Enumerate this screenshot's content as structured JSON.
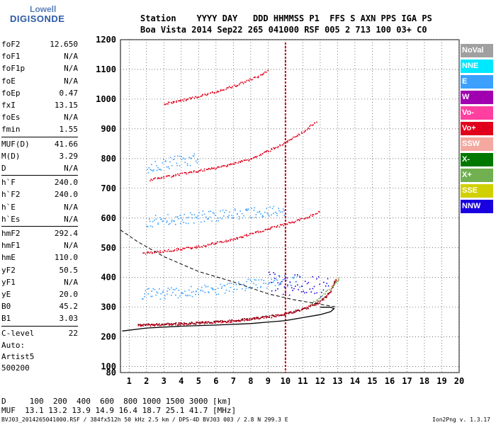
{
  "logo": {
    "line1": "Lowell",
    "line2": "DIGISONDE"
  },
  "header": {
    "line1": "Station    YYYY DAY   DDD HHMMSS P1  FFS S AXN PPS IGA PS",
    "line2": "Boa Vista 2014 Sep22 265 041000 RSF 005 2 713 100 03+ C0"
  },
  "params": [
    {
      "name": "foF2",
      "value": "12.650"
    },
    {
      "name": "foF1",
      "value": "N/A"
    },
    {
      "name": "foF1p",
      "value": "N/A"
    },
    {
      "name": "foE",
      "value": "N/A"
    },
    {
      "name": "foEp",
      "value": "0.47"
    },
    {
      "name": "fxI",
      "value": "13.15"
    },
    {
      "name": "foEs",
      "value": "N/A"
    },
    {
      "name": "fmin",
      "value": "1.55"
    },
    {
      "name": "MUF(D)",
      "value": "41.66"
    },
    {
      "name": "M(D)",
      "value": "3.29"
    },
    {
      "name": "D",
      "value": "N/A"
    },
    {
      "name": "h`F",
      "value": "240.0"
    },
    {
      "name": "h`F2",
      "value": "240.0"
    },
    {
      "name": "h`E",
      "value": "N/A"
    },
    {
      "name": "h`Es",
      "value": "N/A"
    },
    {
      "name": "hmF2",
      "value": "292.4"
    },
    {
      "name": "hmF1",
      "value": "N/A"
    },
    {
      "name": "hmE",
      "value": "110.0"
    },
    {
      "name": "yF2",
      "value": "50.5"
    },
    {
      "name": "yF1",
      "value": "N/A"
    },
    {
      "name": "yE",
      "value": "20.0"
    },
    {
      "name": "B0",
      "value": "45.2"
    },
    {
      "name": "B1",
      "value": "3.03"
    },
    {
      "name": "C-level",
      "value": "22"
    }
  ],
  "auto": {
    "line1": "Auto:",
    "line2": "Artist5",
    "line3": "500200"
  },
  "legend": [
    {
      "label": "NoVal",
      "bg": "#a0a0a0",
      "fg": "#ffffff"
    },
    {
      "label": "NNE",
      "bg": "#00e8ff",
      "fg": "#ffffff"
    },
    {
      "label": "E",
      "bg": "#3ca0ff",
      "fg": "#ffffff"
    },
    {
      "label": "W",
      "bg": "#a000b0",
      "fg": "#ffffff"
    },
    {
      "label": "Vo-",
      "bg": "#ff40a0",
      "fg": "#ffffff"
    },
    {
      "label": "Vo+",
      "bg": "#e0001c",
      "fg": "#ffffff"
    },
    {
      "label": "SSW",
      "bg": "#f4a8a0",
      "fg": "#ffffff"
    },
    {
      "label": "X-",
      "bg": "#007800",
      "fg": "#ffffff"
    },
    {
      "label": "X+",
      "bg": "#70b050",
      "fg": "#ffffff"
    },
    {
      "label": "SSE",
      "bg": "#d0d000",
      "fg": "#ffffff"
    },
    {
      "label": "NNW",
      "bg": "#1800e0",
      "fg": "#ffffff"
    }
  ],
  "muf_table": {
    "line1": "D     100  200  400  600  800 1000 1500 3000 [km]",
    "line2": "MUF  13.1 13.2 13.9 14.9 16.4 18.7 25.1 41.7 [MHz]"
  },
  "footer": {
    "file": "BVJ03_2014265041000.RSF / 384fx512h 50 kHz 2.5 km / DPS-4D BVJ03 003 / 2.8 N 299.3 E",
    "version": "Ion2Png v. 1.3.17"
  },
  "chart_data": {
    "type": "scatter",
    "xlim": [
      0.5,
      20
    ],
    "ylim": [
      80,
      1200
    ],
    "x_ticks": [
      1,
      2,
      3,
      4,
      5,
      6,
      7,
      8,
      9,
      10,
      11,
      12,
      13,
      14,
      15,
      16,
      17,
      18,
      19,
      20
    ],
    "y_ticks": [
      80,
      100,
      200,
      300,
      400,
      500,
      600,
      700,
      800,
      900,
      1000,
      1100,
      1200
    ],
    "series": [
      {
        "color": "#e0001c",
        "points": [
          [
            1.5,
            240
          ],
          [
            3,
            243
          ],
          [
            5,
            248
          ],
          [
            7,
            255
          ],
          [
            9,
            268
          ],
          [
            10,
            280
          ],
          [
            11,
            295
          ],
          [
            12,
            320
          ],
          [
            12.5,
            345
          ],
          [
            12.8,
            380
          ],
          [
            12.9,
            400
          ]
        ]
      },
      {
        "color": "#7a0010",
        "points": [
          [
            1.5,
            242
          ],
          [
            4,
            246
          ],
          [
            6,
            252
          ],
          [
            8,
            262
          ],
          [
            9.5,
            274
          ],
          [
            10.5,
            286
          ],
          [
            11.5,
            305
          ],
          [
            12.3,
            335
          ],
          [
            12.7,
            370
          ],
          [
            12.85,
            395
          ]
        ]
      },
      {
        "color": "#e0001c",
        "points": [
          [
            1.8,
            483
          ],
          [
            3,
            490
          ],
          [
            5,
            505
          ],
          [
            7,
            530
          ],
          [
            9,
            565
          ],
          [
            10.5,
            590
          ],
          [
            11.5,
            610
          ],
          [
            12,
            625
          ]
        ]
      },
      {
        "color": "#e0001c",
        "points": [
          [
            2.2,
            730
          ],
          [
            4,
            750
          ],
          [
            6,
            770
          ],
          [
            8,
            800
          ],
          [
            10,
            855
          ],
          [
            11,
            890
          ],
          [
            11.8,
            930
          ]
        ]
      },
      {
        "color": "#e0001c",
        "points": [
          [
            3,
            985
          ],
          [
            5,
            1010
          ],
          [
            7,
            1045
          ],
          [
            8.5,
            1080
          ],
          [
            9,
            1100
          ]
        ]
      },
      {
        "color": "#3ca0ff",
        "points": [
          [
            1.7,
            345
          ],
          [
            3,
            348
          ],
          [
            5,
            355
          ],
          [
            7,
            365
          ],
          [
            8,
            380
          ],
          [
            9,
            385
          ],
          [
            10,
            390
          ],
          [
            11,
            388
          ]
        ]
      },
      {
        "color": "#1800e0",
        "points": [
          [
            9,
            390
          ],
          [
            9.5,
            385
          ],
          [
            10,
            370
          ],
          [
            10.5,
            380
          ],
          [
            11,
            375
          ],
          [
            11.5,
            385
          ],
          [
            12,
            370
          ],
          [
            12.5,
            380
          ]
        ]
      },
      {
        "color": "#3ca0ff",
        "points": [
          [
            2,
            590
          ],
          [
            4,
            600
          ],
          [
            6,
            610
          ],
          [
            8,
            620
          ],
          [
            10,
            625
          ]
        ]
      },
      {
        "color": "#3ca0ff",
        "points": [
          [
            2,
            770
          ],
          [
            3.5,
            790
          ],
          [
            5,
            800
          ]
        ]
      },
      {
        "color": "#70b050",
        "points": [
          [
            11.5,
            315
          ],
          [
            12,
            335
          ],
          [
            12.5,
            360
          ],
          [
            12.9,
            385
          ],
          [
            13.1,
            405
          ]
        ]
      }
    ],
    "profile": [
      [
        0.6,
        220
      ],
      [
        2,
        230
      ],
      [
        4,
        236
      ],
      [
        6,
        240
      ],
      [
        8,
        245
      ],
      [
        10,
        255
      ],
      [
        11,
        265
      ],
      [
        12,
        275
      ],
      [
        12.6,
        285
      ],
      [
        12.8,
        295
      ],
      [
        12.6,
        300
      ],
      [
        12,
        300
      ]
    ],
    "mufcurve": [
      [
        0.5,
        560
      ],
      [
        1.5,
        520
      ],
      [
        3,
        470
      ],
      [
        5,
        420
      ],
      [
        7,
        385
      ],
      [
        9,
        345
      ],
      [
        10.5,
        325
      ],
      [
        12,
        310
      ],
      [
        13,
        300
      ]
    ],
    "vertical_trace_freq": 10
  }
}
